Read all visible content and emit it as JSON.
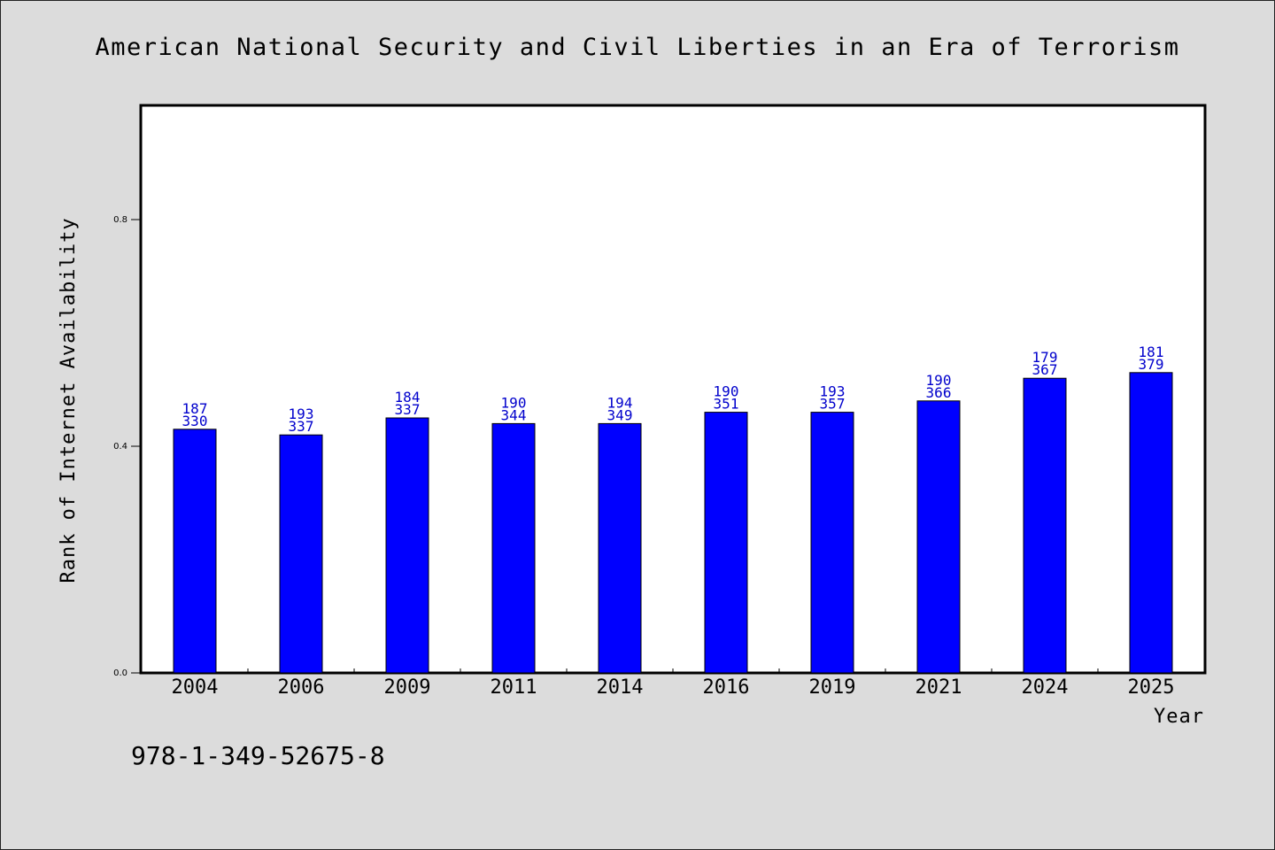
{
  "chart_data": {
    "type": "bar",
    "title": "American National Security and Civil Liberties in an Era of Terrorism",
    "xlabel": "Year",
    "ylabel": "Rank of Internet Availability",
    "categories": [
      "2004",
      "2006",
      "2009",
      "2011",
      "2014",
      "2016",
      "2019",
      "2021",
      "2024",
      "2025"
    ],
    "values": [
      0.43,
      0.42,
      0.45,
      0.44,
      0.44,
      0.46,
      0.46,
      0.48,
      0.52,
      0.53
    ],
    "bar_labels": [
      [
        "187",
        "330"
      ],
      [
        "193",
        "337"
      ],
      [
        "184",
        "337"
      ],
      [
        "190",
        "344"
      ],
      [
        "194",
        "349"
      ],
      [
        "190",
        "351"
      ],
      [
        "193",
        "357"
      ],
      [
        "190",
        "366"
      ],
      [
        "179",
        "367"
      ],
      [
        "181",
        "379"
      ]
    ],
    "yticks": [
      "0.0",
      "0.4",
      "0.8"
    ],
    "ytick_values": [
      0.0,
      0.4,
      0.8
    ],
    "ylim": [
      0.0,
      1.0
    ],
    "grid": false,
    "legend": "none",
    "bar_color": "#0000ff",
    "label_color": "#0000cc"
  },
  "footer": {
    "isbn": "978-1-349-52675-8"
  }
}
